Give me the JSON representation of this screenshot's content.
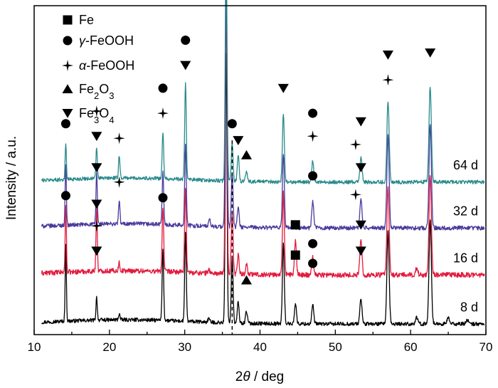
{
  "chart_data": {
    "type": "line",
    "xlabel": "2θ / deg",
    "xlabel_prefix": "2",
    "xlabel_symbol": "θ",
    "xlabel_suffix": " / deg",
    "ylabel": "Intensity / a.u.",
    "xlim": [
      10,
      70
    ],
    "xticks": [
      10,
      20,
      30,
      40,
      50,
      60,
      70
    ],
    "legend": {
      "position": "top-left",
      "entries": [
        {
          "marker": "square",
          "label": "Fe",
          "parts": [
            {
              "t": "Fe"
            }
          ]
        },
        {
          "marker": "circle",
          "label": "γ-FeOOH",
          "parts": [
            {
              "t": "γ",
              "i": true
            },
            {
              "t": "-FeOOH"
            }
          ]
        },
        {
          "marker": "star",
          "label": "α-FeOOH",
          "parts": [
            {
              "t": " "
            },
            {
              "t": "α",
              "i": true
            },
            {
              "t": "-FeOOH"
            }
          ]
        },
        {
          "marker": "tri-up",
          "label": "Fe2O3",
          "parts": [
            {
              "t": "Fe"
            },
            {
              "t": "2",
              "sub": true
            },
            {
              "t": "O"
            },
            {
              "t": "3",
              "sub": true
            }
          ]
        },
        {
          "marker": "tri-down",
          "label": "Fe3O4",
          "parts": [
            {
              "t": "Fe"
            },
            {
              "t": "3",
              "sub": true
            },
            {
              "t": "O"
            },
            {
              "t": "4",
              "sub": true
            }
          ]
        }
      ]
    },
    "reference_line_x": 36.3,
    "series": [
      {
        "name": "8 d",
        "color": "#000000",
        "baseline": 0.0,
        "noise": 0.9,
        "peaks": [
          [
            14.2,
            36
          ],
          [
            18.3,
            11
          ],
          [
            21.3,
            3
          ],
          [
            27.1,
            34
          ],
          [
            30.1,
            42
          ],
          [
            33.2,
            2
          ],
          [
            35.5,
            129
          ],
          [
            36.3,
            32
          ],
          [
            37.1,
            10
          ],
          [
            38.2,
            6
          ],
          [
            43.1,
            38
          ],
          [
            44.7,
            10
          ],
          [
            47.0,
            9
          ],
          [
            53.4,
            12
          ],
          [
            57.0,
            44
          ],
          [
            60.8,
            3
          ],
          [
            62.6,
            50
          ],
          [
            65.0,
            3
          ],
          [
            67.5,
            2
          ]
        ],
        "markers": [
          {
            "x": 18.3,
            "y": 35,
            "m": "tri-down"
          },
          {
            "x": 18.3,
            "y": 47,
            "m": "star"
          },
          {
            "x": 38.2,
            "y": 21,
            "m": "tri-up"
          },
          {
            "x": 44.7,
            "y": 33,
            "m": "square"
          },
          {
            "x": 47.0,
            "y": 29,
            "m": "circle"
          },
          {
            "x": 53.4,
            "y": 35,
            "m": "tri-down"
          }
        ]
      },
      {
        "name": "16 d",
        "color": "#e31a3d",
        "baseline": 23.5,
        "noise": 1.2,
        "peaks": [
          [
            14.2,
            32
          ],
          [
            18.3,
            30
          ],
          [
            21.3,
            4
          ],
          [
            27.1,
            31
          ],
          [
            30.1,
            41
          ],
          [
            33.2,
            2
          ],
          [
            35.5,
            130
          ],
          [
            36.3,
            30
          ],
          [
            37.1,
            10
          ],
          [
            38.2,
            5
          ],
          [
            43.1,
            39
          ],
          [
            44.7,
            16
          ],
          [
            47.0,
            9
          ],
          [
            53.4,
            17
          ],
          [
            57.0,
            42
          ],
          [
            60.8,
            3
          ],
          [
            62.6,
            48
          ]
        ],
        "markers": [
          {
            "x": 14.2,
            "y": 38,
            "m": "circle"
          },
          {
            "x": 18.3,
            "y": 34,
            "m": "tri-down"
          },
          {
            "x": 27.1,
            "y": 37,
            "m": "circle"
          },
          {
            "x": 44.7,
            "y": 24,
            "m": "square"
          },
          {
            "x": 47.0,
            "y": 15,
            "m": "circle"
          },
          {
            "x": 53.4,
            "y": 24,
            "m": "tri-down"
          }
        ]
      },
      {
        "name": "32 d",
        "color": "#4a3a9c",
        "baseline": 46.0,
        "noise": 1.0,
        "peaks": [
          [
            14.2,
            30
          ],
          [
            18.3,
            25
          ],
          [
            21.3,
            11
          ],
          [
            27.1,
            25
          ],
          [
            30.1,
            39
          ],
          [
            33.3,
            3
          ],
          [
            35.5,
            117
          ],
          [
            36.3,
            26
          ],
          [
            37.1,
            10
          ],
          [
            43.1,
            36
          ],
          [
            47.0,
            13
          ],
          [
            53.4,
            14
          ],
          [
            57.0,
            45
          ],
          [
            62.6,
            50
          ]
        ],
        "markers": [
          {
            "x": 18.3,
            "y": 29,
            "m": "tri-down"
          },
          {
            "x": 21.3,
            "y": 22,
            "m": "star"
          },
          {
            "x": 47.0,
            "y": 25,
            "m": "circle"
          },
          {
            "x": 52.7,
            "y": 16,
            "m": "star"
          },
          {
            "x": 53.4,
            "y": 29,
            "m": "tri-down"
          }
        ]
      },
      {
        "name": "64 d",
        "color": "#2a8a8c",
        "baseline": 68.0,
        "noise": 0.9,
        "peaks": [
          [
            14.2,
            17
          ],
          [
            18.3,
            15
          ],
          [
            21.3,
            11
          ],
          [
            27.1,
            22
          ],
          [
            30.1,
            46
          ],
          [
            35.5,
            116
          ],
          [
            36.3,
            18
          ],
          [
            37.1,
            13
          ],
          [
            38.2,
            5
          ],
          [
            43.1,
            33
          ],
          [
            47.0,
            10
          ],
          [
            53.4,
            12
          ],
          [
            57.0,
            39
          ],
          [
            62.6,
            46
          ]
        ],
        "markers": [
          {
            "x": 14.2,
            "y": 28,
            "m": "circle"
          },
          {
            "x": 18.3,
            "y": 22,
            "m": "tri-down"
          },
          {
            "x": 18.3,
            "y": 34,
            "m": "star"
          },
          {
            "x": 21.3,
            "y": 21,
            "m": "star"
          },
          {
            "x": 27.1,
            "y": 33,
            "m": "star"
          },
          {
            "x": 27.1,
            "y": 45,
            "m": "circle"
          },
          {
            "x": 30.1,
            "y": 56,
            "m": "tri-down"
          },
          {
            "x": 30.1,
            "y": 68,
            "m": "circle"
          },
          {
            "x": 35.5,
            "y": 128,
            "m": "tri-down"
          },
          {
            "x": 36.3,
            "y": 28,
            "m": "circle"
          },
          {
            "x": 37.1,
            "y": 20,
            "m": "tri-down"
          },
          {
            "x": 38.2,
            "y": 13,
            "m": "tri-up"
          },
          {
            "x": 43.1,
            "y": 45,
            "m": "tri-down"
          },
          {
            "x": 47.0,
            "y": 22,
            "m": "star"
          },
          {
            "x": 47.0,
            "y": 33,
            "m": "circle"
          },
          {
            "x": 52.7,
            "y": 18,
            "m": "star"
          },
          {
            "x": 53.4,
            "y": 29,
            "m": "tri-down"
          },
          {
            "x": 57.0,
            "y": 49,
            "m": "star"
          },
          {
            "x": 57.0,
            "y": 61,
            "m": "tri-down"
          },
          {
            "x": 62.6,
            "y": 62,
            "m": "tri-down"
          }
        ]
      }
    ]
  }
}
